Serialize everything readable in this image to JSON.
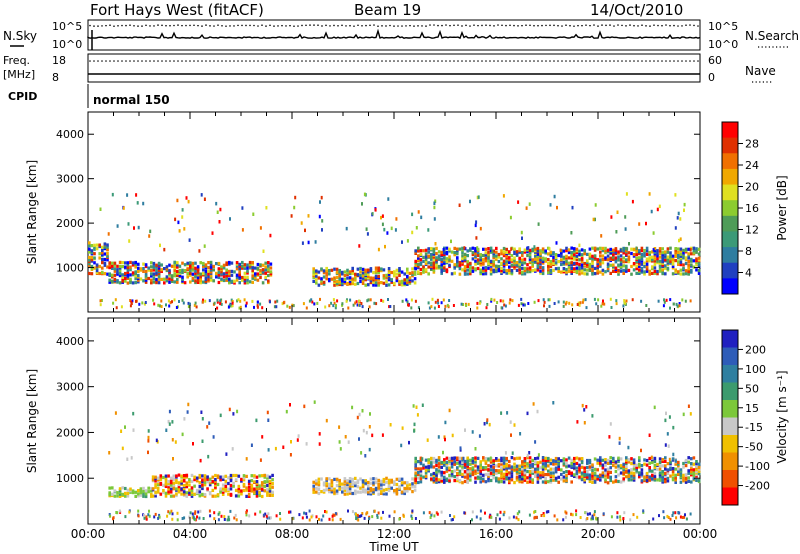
{
  "header": {
    "title": "Fort Hays West (fitACF)",
    "beam": "Beam 19",
    "date": "14/Oct/2010"
  },
  "status_panel": {
    "nsky_label": "N.Sky",
    "nsky_ticks": [
      "10^5",
      "10^0"
    ],
    "nsearch_label": "N.Search",
    "nsearch_ticks": [
      "10^5",
      "10^0"
    ],
    "freq_label": "Freq.",
    "freq_unit": "[MHz]",
    "freq_ticks": [
      "18",
      "8"
    ],
    "nave_label": "Nave",
    "nave_ticks": [
      "60",
      "0"
    ],
    "cpid_label": "CPID",
    "cpid_value": "normal 150"
  },
  "chart_data": [
    {
      "type": "heatmap",
      "panel": "power",
      "xlabel": "Time UT",
      "ylabel": "Slant Range [km]",
      "x_ticks": [
        "00:00",
        "04:00",
        "08:00",
        "12:00",
        "16:00",
        "20:00",
        "00:00"
      ],
      "x_range_hours": [
        0,
        24
      ],
      "y_ticks": [
        1000,
        2000,
        3000,
        4000
      ],
      "ylim": [
        0,
        4500
      ],
      "colorbar": {
        "label": "Power [dB]",
        "ticks": [
          "4",
          "8",
          "12",
          "16",
          "20",
          "24",
          "28"
        ],
        "range": [
          0,
          30
        ],
        "colors": [
          "#0000ff",
          "#2040c0",
          "#2e7da0",
          "#3c9a78",
          "#4f9c58",
          "#8ccc30",
          "#e0e020",
          "#f0a800",
          "#f07000",
          "#e03000",
          "#ff0000"
        ]
      },
      "features": [
        {
          "from_h": 0.0,
          "to_h": 0.8,
          "range_km": [
            900,
            1600
          ],
          "level": "high"
        },
        {
          "from_h": 0.8,
          "to_h": 7.2,
          "range_km": [
            700,
            1150
          ],
          "level": "mixed"
        },
        {
          "from_h": 8.8,
          "to_h": 12.8,
          "range_km": [
            650,
            1050
          ],
          "level": "high"
        },
        {
          "from_h": 12.8,
          "to_h": 24.0,
          "range_km": [
            900,
            1500
          ],
          "level": "mixed"
        }
      ]
    },
    {
      "type": "heatmap",
      "panel": "velocity",
      "xlabel": "Time UT",
      "ylabel": "Slant Range [km]",
      "x_ticks": [
        "00:00",
        "04:00",
        "08:00",
        "12:00",
        "16:00",
        "20:00",
        "00:00"
      ],
      "x_range_hours": [
        0,
        24
      ],
      "y_ticks": [
        1000,
        2000,
        3000,
        4000
      ],
      "ylim": [
        0,
        4500
      ],
      "colorbar": {
        "label": "Velocity [m s⁻¹]",
        "ticks": [
          "200",
          "100",
          "50",
          "15",
          "-15",
          "-50",
          "-100",
          "-200"
        ],
        "colors": [
          "#2020c0",
          "#2e5cb8",
          "#2f7fa0",
          "#3c9b6e",
          "#7cc83a",
          "#c8c8c8",
          "#f0c000",
          "#f09000",
          "#f05000",
          "#ff0000"
        ]
      },
      "features": [
        {
          "from_h": 0.8,
          "to_h": 2.5,
          "range_km": [
            650,
            850
          ],
          "level": "green"
        },
        {
          "from_h": 2.5,
          "to_h": 7.2,
          "range_km": [
            650,
            1100
          ],
          "level": "orange"
        },
        {
          "from_h": 8.8,
          "to_h": 12.8,
          "range_km": [
            700,
            1050
          ],
          "level": "grey-orange"
        },
        {
          "from_h": 12.8,
          "to_h": 24.0,
          "range_km": [
            950,
            1500
          ],
          "level": "mixed"
        }
      ]
    }
  ]
}
